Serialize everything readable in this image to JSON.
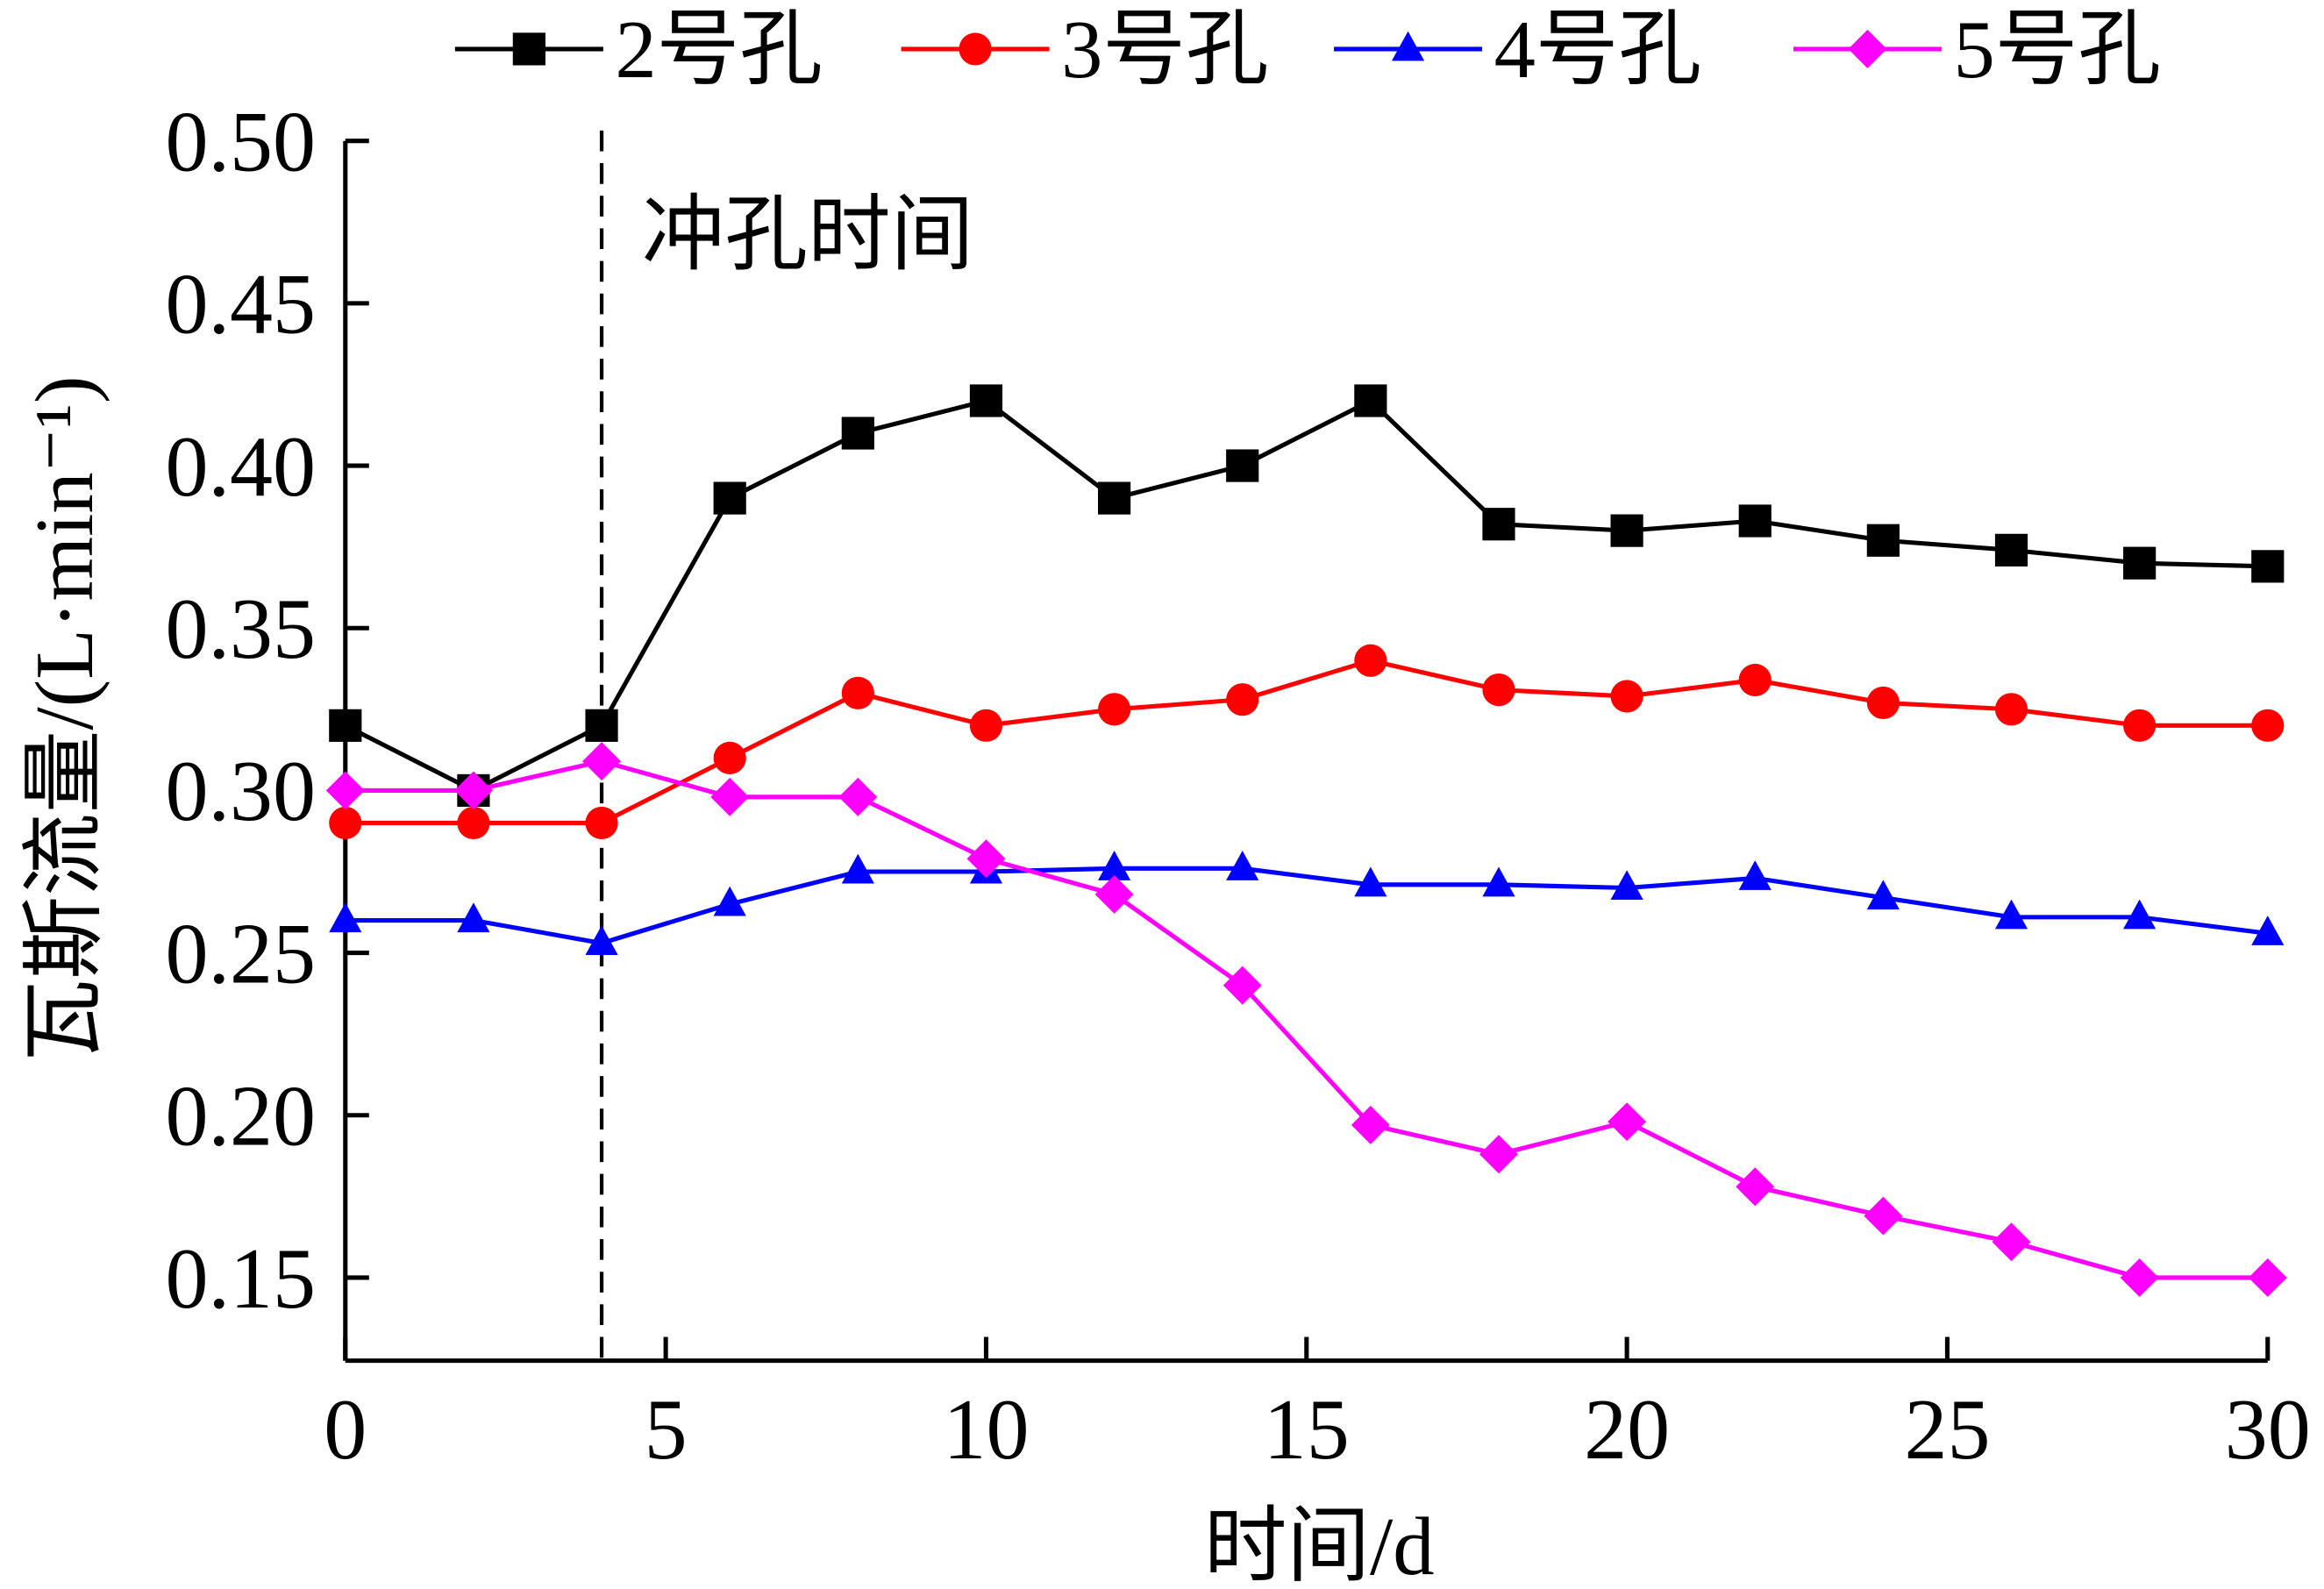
{
  "chart_data": {
    "type": "line",
    "title": "",
    "xlabel": "时间/d",
    "ylabel": "瓦斯流量/(L·min⁻¹)",
    "xlim": [
      0,
      30
    ],
    "ylim": [
      0.125,
      0.5
    ],
    "xticks": [
      "0",
      "5",
      "10",
      "15",
      "20",
      "25",
      "30"
    ],
    "yticks": [
      "0.15",
      "0.20",
      "0.25",
      "0.30",
      "0.35",
      "0.40",
      "0.45",
      "0.50"
    ],
    "grid": false,
    "legend_position": "top",
    "annotation": {
      "text": "冲孔时间",
      "x": 4
    },
    "x": [
      0,
      2,
      4,
      6,
      8,
      10,
      12,
      14,
      16,
      18,
      20,
      22,
      24,
      26,
      28,
      30
    ],
    "series": [
      {
        "name": "2号孔",
        "color": "#000000",
        "marker": "square",
        "values": [
          0.32,
          0.3,
          0.32,
          0.39,
          0.41,
          0.42,
          0.39,
          0.4,
          0.42,
          0.382,
          0.38,
          0.383,
          0.377,
          0.374,
          0.37,
          0.369
        ]
      },
      {
        "name": "3号孔",
        "color": "#ff0000",
        "marker": "circle",
        "values": [
          0.29,
          0.29,
          0.29,
          0.31,
          0.33,
          0.32,
          0.325,
          0.328,
          0.34,
          0.331,
          0.329,
          0.334,
          0.327,
          0.325,
          0.32,
          0.32
        ]
      },
      {
        "name": "4号孔",
        "color": "#0000ff",
        "marker": "triangle",
        "values": [
          0.26,
          0.26,
          0.253,
          0.265,
          0.275,
          0.275,
          0.276,
          0.276,
          0.271,
          0.271,
          0.27,
          0.273,
          0.267,
          0.261,
          0.261,
          0.256
        ]
      },
      {
        "name": "5号孔",
        "color": "#ff00ff",
        "marker": "diamond",
        "values": [
          0.3,
          0.3,
          0.309,
          0.298,
          0.298,
          0.279,
          0.268,
          0.24,
          0.197,
          0.188,
          0.198,
          0.178,
          0.169,
          0.161,
          0.15,
          0.15
        ]
      }
    ]
  }
}
